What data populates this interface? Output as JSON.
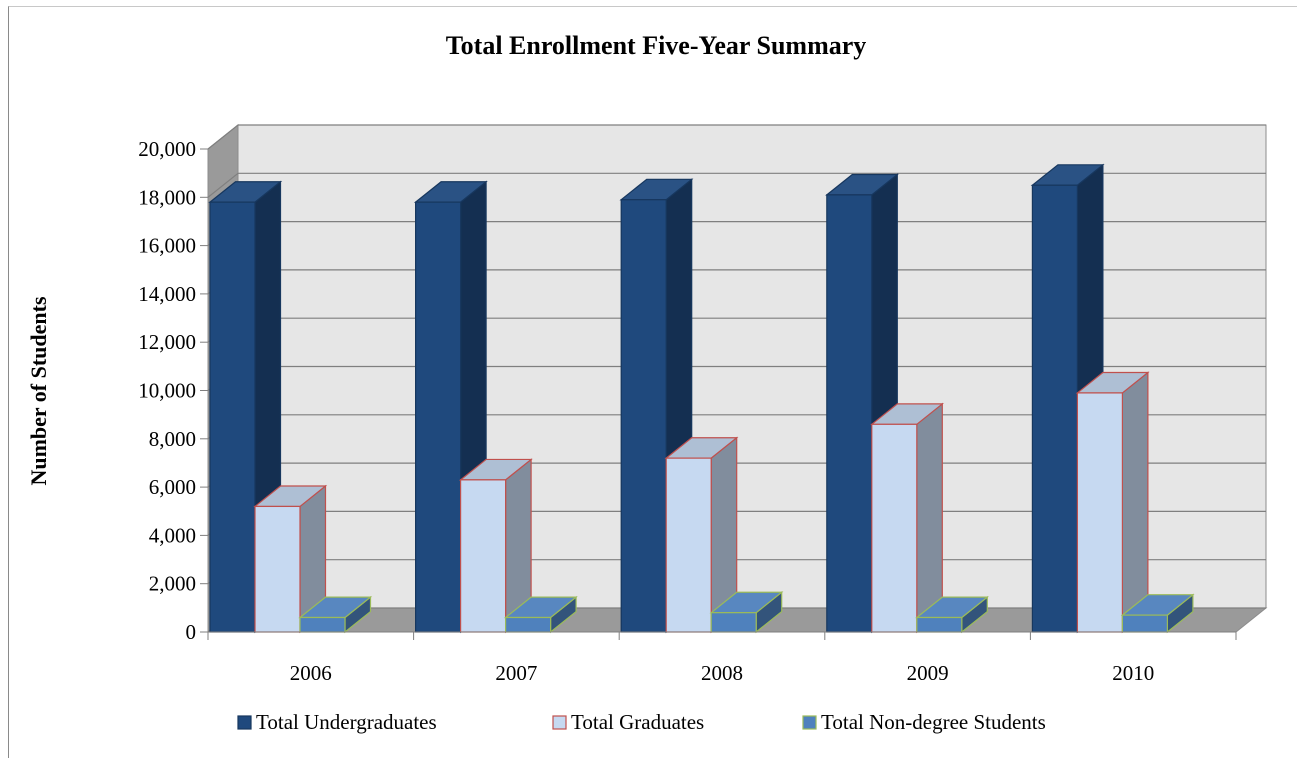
{
  "chart_data": {
    "type": "bar",
    "title": "Total Enrollment Five-Year Summary",
    "xlabel": "",
    "ylabel": "Number of Students",
    "ylim": [
      0,
      20000
    ],
    "ytick_step": 2000,
    "ytick_labels": [
      "0",
      "2,000",
      "4,000",
      "6,000",
      "8,000",
      "10,000",
      "12,000",
      "14,000",
      "16,000",
      "18,000",
      "20,000"
    ],
    "categories": [
      "2006",
      "2007",
      "2008",
      "2009",
      "2010"
    ],
    "grid": true,
    "legend_position": "bottom",
    "style": "3d-clustered-column",
    "series": [
      {
        "name": "Total Undergraduates",
        "values": [
          17800,
          17800,
          17900,
          18100,
          18500
        ],
        "color": "#1f497d",
        "edge": "#17375e"
      },
      {
        "name": "Total Graduates",
        "values": [
          5200,
          6300,
          7200,
          8600,
          9900
        ],
        "color": "#c6d9f1",
        "edge": "#c0504d"
      },
      {
        "name": "Total Non-degree Students",
        "values": [
          600,
          600,
          800,
          600,
          700
        ],
        "color": "#4f81bd",
        "edge": "#9bbb59"
      }
    ]
  }
}
